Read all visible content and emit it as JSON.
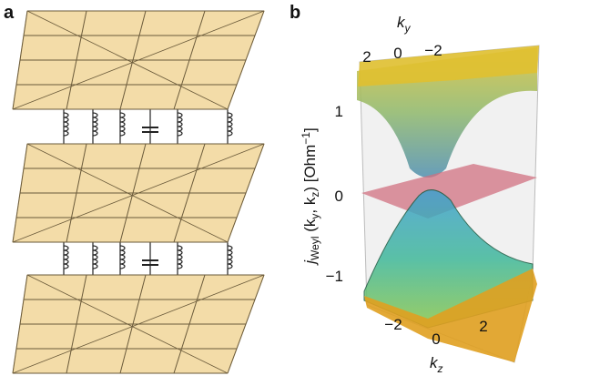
{
  "panel_a": {
    "label": "a"
  },
  "panel_b": {
    "label": "b",
    "ky_axis": {
      "label": "k",
      "sub": "y",
      "ticks": [
        "2",
        "0",
        "−2"
      ]
    },
    "kz_axis": {
      "label": "k",
      "sub": "z",
      "ticks": [
        "−2",
        "0",
        "2"
      ]
    },
    "j_axis": {
      "parts": [
        "j",
        "Weyl",
        " (k",
        "y",
        ", k",
        "z",
        ") [Ohm",
        "−1",
        "]"
      ],
      "ticks": [
        "1",
        "0",
        "−1"
      ]
    }
  }
}
